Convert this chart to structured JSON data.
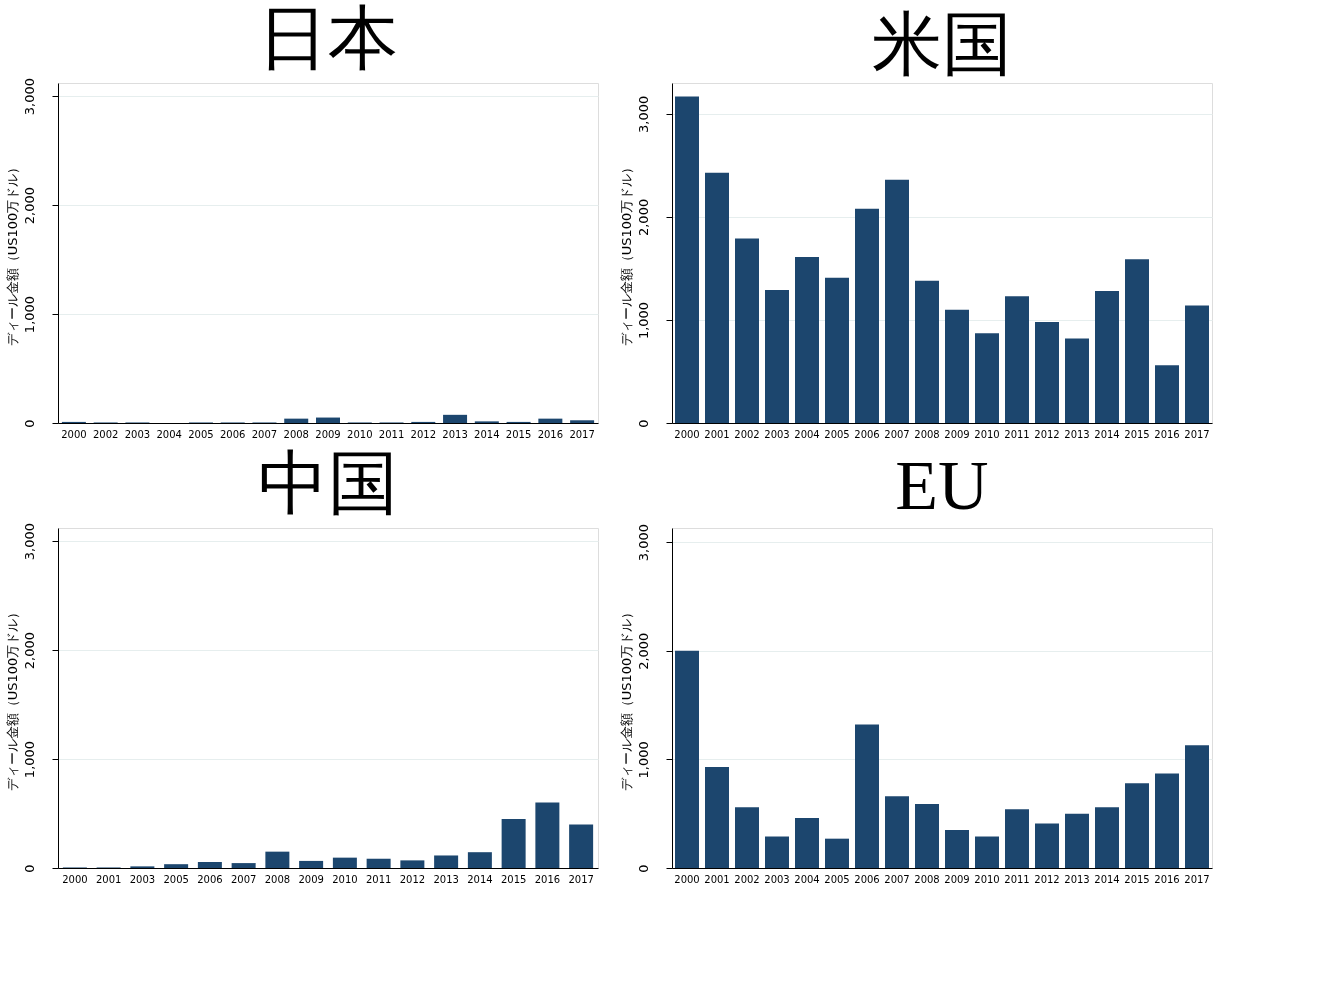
{
  "chart_data": [
    {
      "type": "bar",
      "title": "日本",
      "ylabel": "ディール金額（US100万ドル）",
      "categories": [
        "2000",
        "2002",
        "2003",
        "2004",
        "2005",
        "2006",
        "2007",
        "2008",
        "2009",
        "2010",
        "2011",
        "2012",
        "2013",
        "2014",
        "2015",
        "2016",
        "2017"
      ],
      "values": [
        10,
        5,
        5,
        0,
        5,
        5,
        5,
        40,
        50,
        5,
        5,
        10,
        75,
        15,
        10,
        40,
        25
      ],
      "color": "#1c466e",
      "ylim": [
        0,
        3120
      ],
      "yticks": [
        0,
        {
          "value": 1000,
          "label": "1,000"
        },
        {
          "value": 2000,
          "label": "2,000"
        },
        {
          "value": 3000,
          "label": "3,000"
        }
      ],
      "grid": "y"
    },
    {
      "type": "bar",
      "title": "米国",
      "ylabel": "ディール金額（US100万ドル）",
      "categories": [
        "2000",
        "2001",
        "2002",
        "2003",
        "2004",
        "2005",
        "2006",
        "2007",
        "2008",
        "2009",
        "2010",
        "2011",
        "2012",
        "2013",
        "2014",
        "2015",
        "2016",
        "2017"
      ],
      "values": [
        3170,
        2430,
        1790,
        1290,
        1610,
        1410,
        2080,
        2360,
        1380,
        1100,
        870,
        1230,
        980,
        820,
        1280,
        1590,
        560,
        1140
      ],
      "color": "#1c466e",
      "ylim": [
        0,
        3300
      ],
      "yticks": [
        0,
        {
          "value": 1000,
          "label": "1,000"
        },
        {
          "value": 2000,
          "label": "2,000"
        },
        {
          "value": 3000,
          "label": "3,000"
        }
      ],
      "grid": "y"
    },
    {
      "type": "bar",
      "title": "中国",
      "ylabel": "ディール金額（US100万ドル）",
      "categories": [
        "2000",
        "2001",
        "2003",
        "2005",
        "2006",
        "2007",
        "2008",
        "2009",
        "2010",
        "2011",
        "2012",
        "2013",
        "2014",
        "2015",
        "2016",
        "2017"
      ],
      "values": [
        5,
        5,
        15,
        35,
        55,
        45,
        150,
        65,
        95,
        85,
        70,
        115,
        145,
        450,
        600,
        400
      ],
      "color": "#1c466e",
      "ylim": [
        0,
        3120
      ],
      "yticks": [
        0,
        {
          "value": 1000,
          "label": "1,000"
        },
        {
          "value": 2000,
          "label": "2,000"
        },
        {
          "value": 3000,
          "label": "3,000"
        }
      ],
      "grid": "y"
    },
    {
      "type": "bar",
      "title": "EU",
      "ylabel": "ディール金額（US100万ドル）",
      "categories": [
        "2000",
        "2001",
        "2002",
        "2003",
        "2004",
        "2005",
        "2006",
        "2007",
        "2008",
        "2009",
        "2010",
        "2011",
        "2012",
        "2013",
        "2014",
        "2015",
        "2016",
        "2017"
      ],
      "values": [
        2000,
        930,
        560,
        290,
        460,
        270,
        1320,
        660,
        590,
        350,
        290,
        540,
        410,
        500,
        560,
        780,
        870,
        1130
      ],
      "color": "#1c466e",
      "ylim": [
        0,
        3130
      ],
      "yticks": [
        0,
        {
          "value": 1000,
          "label": "1,000"
        },
        {
          "value": 2000,
          "label": "2,000"
        },
        {
          "value": 3000,
          "label": "3,000"
        }
      ],
      "grid": "y"
    }
  ]
}
